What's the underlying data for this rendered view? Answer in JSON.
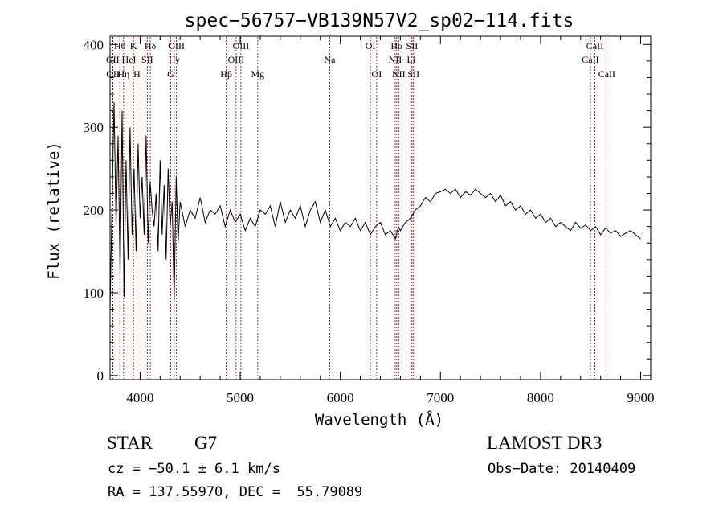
{
  "chart_data": {
    "type": "line",
    "title": "spec−56757−VB139N57V2_sp02−114.fits",
    "xlabel": "Wavelength (Å)",
    "ylabel": "Flux (relative)",
    "xlim": [
      3700,
      9100
    ],
    "ylim": [
      -5,
      410
    ],
    "xticks": [
      4000,
      5000,
      6000,
      7000,
      8000,
      9000
    ],
    "yticks": [
      0,
      100,
      200,
      300,
      400
    ],
    "grid": false,
    "line_color": "#000000",
    "marker_color": "#8b0000",
    "spectral_lines": [
      {
        "label": "Hθ",
        "wave": 3798,
        "row": 0
      },
      {
        "label": "Hη",
        "wave": 3835,
        "row": 2
      },
      {
        "label": "OII",
        "wave": 3727,
        "row": 1
      },
      {
        "label": "OII",
        "wave": 3729,
        "row": 2
      },
      {
        "label": "HeI",
        "wave": 3889,
        "row": 1
      },
      {
        "label": "K",
        "wave": 3934,
        "row": 0
      },
      {
        "label": "H",
        "wave": 3968,
        "row": 2
      },
      {
        "label": "SII",
        "wave": 4072,
        "row": 1
      },
      {
        "label": "Hδ",
        "wave": 4102,
        "row": 0
      },
      {
        "label": "G",
        "wave": 4305,
        "row": 2
      },
      {
        "label": "Hγ",
        "wave": 4341,
        "row": 1
      },
      {
        "label": "OIII",
        "wave": 4363,
        "row": 0
      },
      {
        "label": "Hβ",
        "wave": 4861,
        "row": 2
      },
      {
        "label": "OIII",
        "wave": 4959,
        "row": 1
      },
      {
        "label": "OIII",
        "wave": 5007,
        "row": 0
      },
      {
        "label": "Mg",
        "wave": 5175,
        "row": 2
      },
      {
        "label": "Na",
        "wave": 5894,
        "row": 1
      },
      {
        "label": "OI",
        "wave": 6300,
        "row": 0
      },
      {
        "label": "OI",
        "wave": 6363,
        "row": 2
      },
      {
        "label": "NII",
        "wave": 6548,
        "row": 1
      },
      {
        "label": "Hα",
        "wave": 6563,
        "row": 0
      },
      {
        "label": "NII",
        "wave": 6583,
        "row": 2
      },
      {
        "label": "Li",
        "wave": 6707,
        "row": 1
      },
      {
        "label": "SII",
        "wave": 6716,
        "row": 0
      },
      {
        "label": "SII",
        "wave": 6731,
        "row": 2
      },
      {
        "label": "CaII",
        "wave": 8498,
        "row": 1
      },
      {
        "label": "CaII",
        "wave": 8542,
        "row": 0
      },
      {
        "label": "CaII",
        "wave": 8662,
        "row": 2
      }
    ],
    "series": [
      {
        "x": [
          3700,
          3720,
          3740,
          3760,
          3780,
          3800,
          3820,
          3840,
          3860,
          3880,
          3900,
          3920,
          3940,
          3960,
          3980,
          4000,
          4020,
          4040,
          4060,
          4080,
          4100,
          4120,
          4140,
          4160,
          4180,
          4200,
          4220,
          4240,
          4260,
          4280,
          4300,
          4320,
          4340,
          4360,
          4380,
          4400,
          4450,
          4500,
          4550,
          4600,
          4650,
          4700,
          4750,
          4800,
          4850,
          4900,
          4950,
          5000,
          5050,
          5100,
          5150,
          5200,
          5250,
          5300,
          5350,
          5400,
          5450,
          5500,
          5550,
          5600,
          5650,
          5700,
          5750,
          5800,
          5850,
          5900,
          5950,
          6000,
          6050,
          6100,
          6150,
          6200,
          6250,
          6300,
          6350,
          6400,
          6450,
          6500,
          6550,
          6580,
          6600,
          6650,
          6700,
          6750,
          6800,
          6850,
          6900,
          6950,
          7000,
          7050,
          7100,
          7150,
          7200,
          7250,
          7300,
          7350,
          7400,
          7450,
          7500,
          7550,
          7600,
          7650,
          7700,
          7750,
          7800,
          7850,
          7900,
          7950,
          8000,
          8050,
          8100,
          8150,
          8200,
          8250,
          8300,
          8350,
          8400,
          8450,
          8500,
          8550,
          8600,
          8650,
          8700,
          8750,
          8800,
          8850,
          8900,
          8950,
          9000
        ],
        "y": [
          80,
          210,
          330,
          180,
          290,
          120,
          320,
          95,
          260,
          140,
          300,
          170,
          250,
          150,
          280,
          190,
          240,
          170,
          290,
          160,
          235,
          200,
          180,
          220,
          150,
          260,
          170,
          230,
          140,
          250,
          180,
          210,
          90,
          240,
          160,
          210,
          180,
          200,
          190,
          215,
          185,
          200,
          195,
          205,
          180,
          200,
          185,
          195,
          175,
          190,
          180,
          200,
          195,
          205,
          180,
          210,
          185,
          200,
          190,
          205,
          180,
          200,
          210,
          185,
          200,
          180,
          190,
          175,
          185,
          180,
          190,
          175,
          185,
          170,
          180,
          185,
          170,
          175,
          165,
          180,
          175,
          185,
          190,
          200,
          205,
          215,
          210,
          220,
          222,
          225,
          220,
          225,
          215,
          222,
          218,
          225,
          220,
          215,
          220,
          210,
          218,
          205,
          210,
          200,
          205,
          195,
          200,
          190,
          195,
          185,
          190,
          180,
          185,
          180,
          175,
          185,
          178,
          182,
          175,
          180,
          170,
          178,
          172,
          175,
          168,
          172,
          175,
          170,
          165
        ]
      }
    ]
  },
  "footer": {
    "object_class": "STAR",
    "subclass": "G7",
    "survey": "LAMOST DR3",
    "redshift": "cz = −50.1 ± 6.1 km/s",
    "obs_date": "Obs−Date: 20140409",
    "coords": "RA = 137.55970, DEC =  55.79089"
  }
}
